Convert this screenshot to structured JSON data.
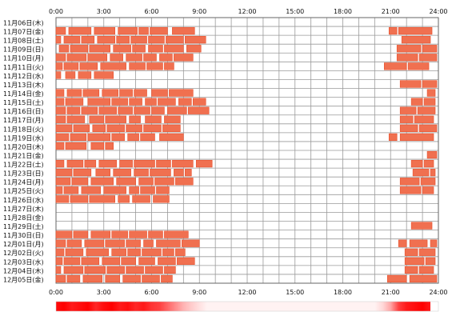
{
  "chart_data": {
    "type": "heatmap",
    "title": "",
    "xlabel": "",
    "ylabel": "",
    "x_range": [
      0,
      24
    ],
    "x_ticks": [
      "0:00",
      "3:00",
      "6:00",
      "9:00",
      "12:00",
      "15:00",
      "18:00",
      "21:00",
      "24:00"
    ],
    "grid_interval_hours": 1,
    "grid": true,
    "rows": [
      {
        "label": "11月06日(木)",
        "segments": []
      },
      {
        "label": "11月07日(金)",
        "segments": [
          [
            0.0,
            0.6
          ],
          [
            0.8,
            2.2
          ],
          [
            2.4,
            3.7
          ],
          [
            3.9,
            5.1
          ],
          [
            5.2,
            5.8
          ],
          [
            5.9,
            7.0
          ],
          [
            7.3,
            8.7
          ],
          [
            20.9,
            21.4
          ],
          [
            21.5,
            23.6
          ]
        ]
      },
      {
        "label": "11月08日(土)",
        "segments": [
          [
            0.0,
            0.3
          ],
          [
            0.5,
            1.5
          ],
          [
            1.6,
            2.4
          ],
          [
            2.6,
            3.7
          ],
          [
            3.8,
            4.6
          ],
          [
            4.7,
            5.7
          ],
          [
            5.8,
            6.8
          ],
          [
            6.9,
            8.0
          ],
          [
            8.1,
            9.4
          ],
          [
            21.7,
            23.5
          ]
        ]
      },
      {
        "label": "11月09日(日)",
        "segments": [
          [
            0.2,
            0.8
          ],
          [
            0.9,
            2.0
          ],
          [
            2.1,
            3.4
          ],
          [
            3.6,
            4.7
          ],
          [
            4.8,
            5.6
          ],
          [
            5.8,
            6.7
          ],
          [
            6.8,
            8.0
          ],
          [
            8.2,
            9.1
          ],
          [
            21.4,
            22.9
          ],
          [
            23.0,
            23.9
          ]
        ]
      },
      {
        "label": "11月10日(月)",
        "segments": [
          [
            0.0,
            0.6
          ],
          [
            0.7,
            1.9
          ],
          [
            2.0,
            3.2
          ],
          [
            3.4,
            4.2
          ],
          [
            4.4,
            5.4
          ],
          [
            5.5,
            6.3
          ],
          [
            6.5,
            7.3
          ],
          [
            7.4,
            8.6
          ],
          [
            21.4,
            22.7
          ],
          [
            22.8,
            23.9
          ]
        ]
      },
      {
        "label": "11月11日(火)",
        "segments": [
          [
            0.0,
            0.4
          ],
          [
            0.5,
            1.4
          ],
          [
            1.5,
            2.6
          ],
          [
            2.8,
            4.4
          ],
          [
            4.6,
            5.6
          ],
          [
            5.7,
            6.7
          ],
          [
            6.8,
            7.4
          ],
          [
            20.6,
            22.0
          ],
          [
            22.1,
            23.4
          ]
        ]
      },
      {
        "label": "11月12日(水)",
        "segments": [
          [
            0.0,
            0.3
          ],
          [
            0.6,
            1.2
          ],
          [
            1.4,
            2.2
          ],
          [
            2.4,
            3.6
          ]
        ]
      },
      {
        "label": "11月13日(木)",
        "segments": [
          [
            21.6,
            22.9
          ],
          [
            23.0,
            23.9
          ]
        ]
      },
      {
        "label": "11月14日(金)",
        "segments": [
          [
            0.0,
            0.5
          ],
          [
            0.7,
            1.6
          ],
          [
            1.7,
            2.7
          ],
          [
            2.9,
            3.9
          ],
          [
            4.0,
            4.8
          ],
          [
            4.9,
            5.7
          ],
          [
            6.0,
            7.0
          ],
          [
            7.1,
            8.6
          ],
          [
            23.3,
            23.8
          ]
        ]
      },
      {
        "label": "11月15日(土)",
        "segments": [
          [
            0.0,
            0.5
          ],
          [
            0.6,
            1.7
          ],
          [
            2.0,
            3.4
          ],
          [
            3.5,
            4.5
          ],
          [
            4.6,
            5.4
          ],
          [
            5.6,
            6.3
          ],
          [
            6.4,
            7.5
          ],
          [
            7.7,
            8.5
          ],
          [
            8.6,
            9.4
          ],
          [
            22.3,
            23.0
          ],
          [
            23.1,
            23.8
          ]
        ]
      },
      {
        "label": "11月16日(日)",
        "segments": [
          [
            0.0,
            0.6
          ],
          [
            0.7,
            1.5
          ],
          [
            1.6,
            2.6
          ],
          [
            2.7,
            3.8
          ],
          [
            3.9,
            4.8
          ],
          [
            4.9,
            5.9
          ],
          [
            6.0,
            6.8
          ],
          [
            7.0,
            8.2
          ],
          [
            8.3,
            9.6
          ],
          [
            21.6,
            22.6
          ],
          [
            22.7,
            23.8
          ]
        ]
      },
      {
        "label": "11月17日(月)",
        "segments": [
          [
            0.0,
            0.6
          ],
          [
            0.7,
            1.8
          ],
          [
            2.1,
            3.0
          ],
          [
            3.1,
            4.4
          ],
          [
            4.6,
            5.3
          ],
          [
            5.6,
            6.6
          ],
          [
            6.8,
            7.8
          ],
          [
            21.6,
            22.4
          ],
          [
            22.5,
            23.7
          ]
        ]
      },
      {
        "label": "11月18日(火)",
        "segments": [
          [
            0.0,
            1.0
          ],
          [
            1.1,
            2.1
          ],
          [
            2.3,
            3.1
          ],
          [
            3.2,
            4.3
          ],
          [
            4.4,
            5.4
          ],
          [
            5.5,
            6.6
          ],
          [
            6.7,
            7.8
          ],
          [
            21.6,
            22.7
          ],
          [
            22.8,
            23.9
          ]
        ]
      },
      {
        "label": "11月19日(水)",
        "segments": [
          [
            0.0,
            0.8
          ],
          [
            0.9,
            1.9
          ],
          [
            2.0,
            3.4
          ],
          [
            3.5,
            4.3
          ],
          [
            4.5,
            5.2
          ],
          [
            5.3,
            6.2
          ],
          [
            6.5,
            8.0
          ],
          [
            20.9,
            21.4
          ],
          [
            21.6,
            23.7
          ]
        ]
      },
      {
        "label": "11月20日(木)",
        "segments": [
          [
            0.0,
            0.5
          ],
          [
            0.6,
            1.9
          ],
          [
            2.2,
            3.0
          ],
          [
            3.1,
            3.6
          ]
        ]
      },
      {
        "label": "11月21日(金)",
        "segments": [
          [
            23.3,
            23.9
          ]
        ]
      },
      {
        "label": "11月22日(土)",
        "segments": [
          [
            0.0,
            0.5
          ],
          [
            0.7,
            1.7
          ],
          [
            1.8,
            2.5
          ],
          [
            2.7,
            3.8
          ],
          [
            4.0,
            4.8
          ],
          [
            4.9,
            6.2
          ],
          [
            6.3,
            7.2
          ],
          [
            7.3,
            8.6
          ],
          [
            8.8,
            9.8
          ],
          [
            22.3,
            23.0
          ],
          [
            23.1,
            23.7
          ]
        ]
      },
      {
        "label": "11月23日(日)",
        "segments": [
          [
            0.0,
            1.0
          ],
          [
            1.1,
            2.2
          ],
          [
            2.5,
            3.4
          ],
          [
            3.6,
            4.7
          ],
          [
            4.9,
            5.8
          ],
          [
            5.9,
            7.2
          ],
          [
            7.4,
            8.0
          ],
          [
            8.1,
            8.5
          ],
          [
            22.4,
            23.4
          ],
          [
            23.5,
            23.8
          ]
        ]
      },
      {
        "label": "11月24日(月)",
        "segments": [
          [
            0.0,
            0.9
          ],
          [
            1.0,
            2.0
          ],
          [
            2.2,
            3.6
          ],
          [
            3.8,
            5.0
          ],
          [
            5.2,
            6.1
          ],
          [
            6.2,
            7.4
          ],
          [
            7.5,
            8.6
          ],
          [
            21.6,
            22.8
          ],
          [
            22.9,
            23.8
          ]
        ]
      },
      {
        "label": "11月25日(火)",
        "segments": [
          [
            0.0,
            0.4
          ],
          [
            0.5,
            1.4
          ],
          [
            1.6,
            2.8
          ],
          [
            3.0,
            4.4
          ],
          [
            4.6,
            5.2
          ],
          [
            5.3,
            6.2
          ],
          [
            6.3,
            7.1
          ],
          [
            21.6,
            22.9
          ],
          [
            23.0,
            23.7
          ]
        ]
      },
      {
        "label": "11月26日(水)",
        "segments": [
          [
            0.0,
            0.8
          ],
          [
            0.9,
            2.0
          ],
          [
            2.1,
            3.7
          ],
          [
            3.9,
            4.6
          ],
          [
            4.8,
            5.9
          ],
          [
            6.1,
            7.1
          ]
        ]
      },
      {
        "label": "11月27日(木)",
        "segments": []
      },
      {
        "label": "11月28日(金)",
        "segments": []
      },
      {
        "label": "11月29日(土)",
        "segments": [
          [
            22.3,
            23.6
          ]
        ]
      },
      {
        "label": "11月30日(日)",
        "segments": [
          [
            0.0,
            1.0
          ],
          [
            1.1,
            2.0
          ],
          [
            2.2,
            3.4
          ],
          [
            3.5,
            4.5
          ],
          [
            4.6,
            5.7
          ],
          [
            5.8,
            6.7
          ],
          [
            6.8,
            8.3
          ]
        ]
      },
      {
        "label": "12月01日(月)",
        "segments": [
          [
            0.0,
            0.6
          ],
          [
            0.7,
            1.6
          ],
          [
            1.8,
            3.0
          ],
          [
            3.1,
            4.3
          ],
          [
            4.4,
            5.3
          ],
          [
            5.5,
            6.1
          ],
          [
            6.3,
            7.8
          ],
          [
            7.9,
            9.0
          ],
          [
            21.5,
            22.0
          ],
          [
            22.2,
            23.3
          ],
          [
            23.5,
            23.9
          ]
        ]
      },
      {
        "label": "12月02日(火)",
        "segments": [
          [
            0.0,
            0.5
          ],
          [
            0.6,
            1.7
          ],
          [
            1.9,
            3.3
          ],
          [
            3.5,
            4.4
          ],
          [
            4.5,
            5.3
          ],
          [
            5.4,
            6.6
          ],
          [
            6.7,
            7.4
          ],
          [
            7.5,
            8.1
          ],
          [
            21.9,
            22.7
          ],
          [
            22.8,
            23.8
          ]
        ]
      },
      {
        "label": "12月03日(水)",
        "segments": [
          [
            0.0,
            0.4
          ],
          [
            0.5,
            1.5
          ],
          [
            1.6,
            2.7
          ],
          [
            2.9,
            4.0
          ],
          [
            4.1,
            5.0
          ],
          [
            5.2,
            6.2
          ],
          [
            6.4,
            7.5
          ],
          [
            7.6,
            8.7
          ],
          [
            21.9,
            23.1
          ],
          [
            23.2,
            23.8
          ]
        ]
      },
      {
        "label": "12月04日(木)",
        "segments": [
          [
            0.0,
            0.3
          ],
          [
            0.5,
            1.7
          ],
          [
            1.8,
            3.1
          ],
          [
            3.2,
            4.3
          ],
          [
            4.4,
            5.5
          ],
          [
            5.6,
            6.7
          ],
          [
            6.8,
            7.5
          ],
          [
            21.9,
            22.7
          ],
          [
            22.8,
            23.7
          ]
        ]
      },
      {
        "label": "12月05日(金)",
        "segments": [
          [
            0.0,
            0.6
          ],
          [
            0.7,
            1.5
          ],
          [
            1.7,
            2.9
          ],
          [
            3.1,
            4.0
          ],
          [
            4.2,
            5.3
          ],
          [
            5.4,
            6.5
          ],
          [
            6.6,
            7.3
          ],
          [
            20.8,
            22.0
          ],
          [
            22.2,
            23.9
          ]
        ]
      }
    ],
    "density_bar": {
      "bins_hours": [
        0,
        0.5,
        1,
        1.5,
        2,
        2.5,
        3,
        3.5,
        4,
        4.5,
        5,
        5.5,
        6,
        6.5,
        7,
        7.5,
        8,
        8.5,
        9,
        9.5,
        20,
        20.5,
        21,
        21.5,
        22,
        22.5,
        23,
        23.5
      ],
      "intensity": [
        0.95,
        1.0,
        0.9,
        0.95,
        1.0,
        0.85,
        0.95,
        1.0,
        0.9,
        0.95,
        0.85,
        0.9,
        0.8,
        0.75,
        0.6,
        0.45,
        0.3,
        0.2,
        0.12,
        0.05,
        0.05,
        0.15,
        0.35,
        0.75,
        0.9,
        0.95,
        1.0,
        0.9
      ]
    },
    "colors": {
      "segment_fill": "#f07050",
      "segment_stroke": "#e8502c",
      "grid_line": "#9a9a9a",
      "frame": "#666666",
      "density_max": "#ff0000"
    }
  }
}
